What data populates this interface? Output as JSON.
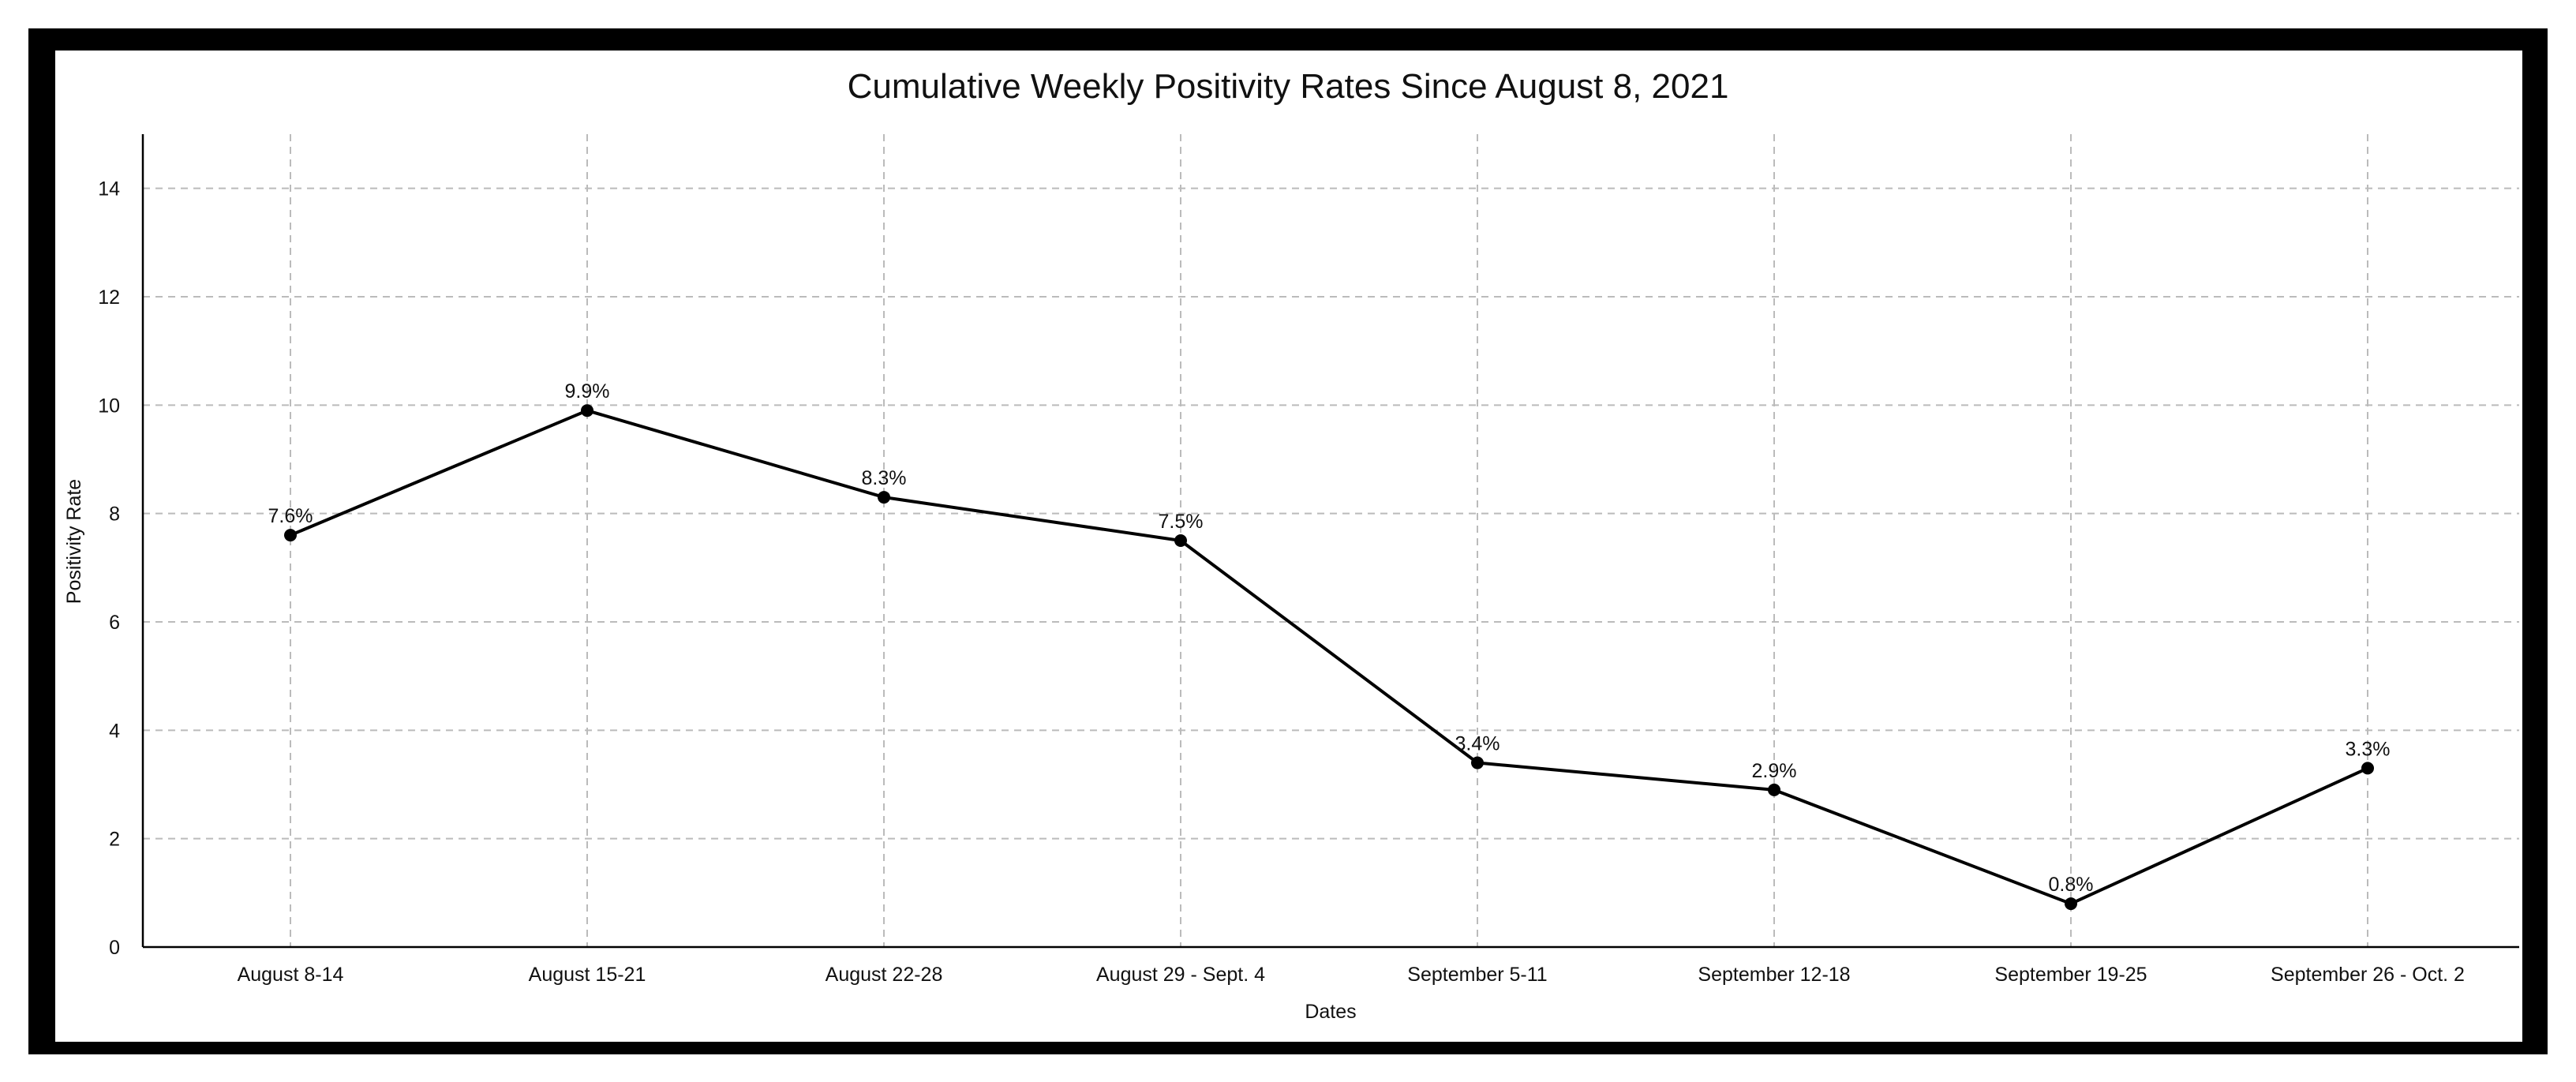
{
  "chart_data": {
    "type": "line",
    "title": "Cumulative Weekly Positivity Rates Since August 8, 2021",
    "xlabel": "Dates",
    "ylabel": "Positivity Rate",
    "categories": [
      "August 8-14",
      "August 15-21",
      "August 22-28",
      "August 29 - Sept. 4",
      "September 5-11",
      "September 12-18",
      "September 19-25",
      "September 26 - Oct. 2"
    ],
    "values": [
      7.6,
      9.9,
      8.3,
      7.5,
      3.4,
      2.9,
      0.8,
      3.3
    ],
    "data_labels": [
      "7.6%",
      "9.9%",
      "8.3%",
      "7.5%",
      "3.4%",
      "2.9%",
      "0.8%",
      "3.3%"
    ],
    "yticks": [
      0,
      2,
      4,
      6,
      8,
      10,
      12,
      14
    ],
    "ylim": [
      0,
      15
    ],
    "grid": true,
    "legend": "none"
  },
  "colors": {
    "line": "#000000",
    "marker": "#000000",
    "grid": "#bbbbbb",
    "frame": "#000000"
  }
}
